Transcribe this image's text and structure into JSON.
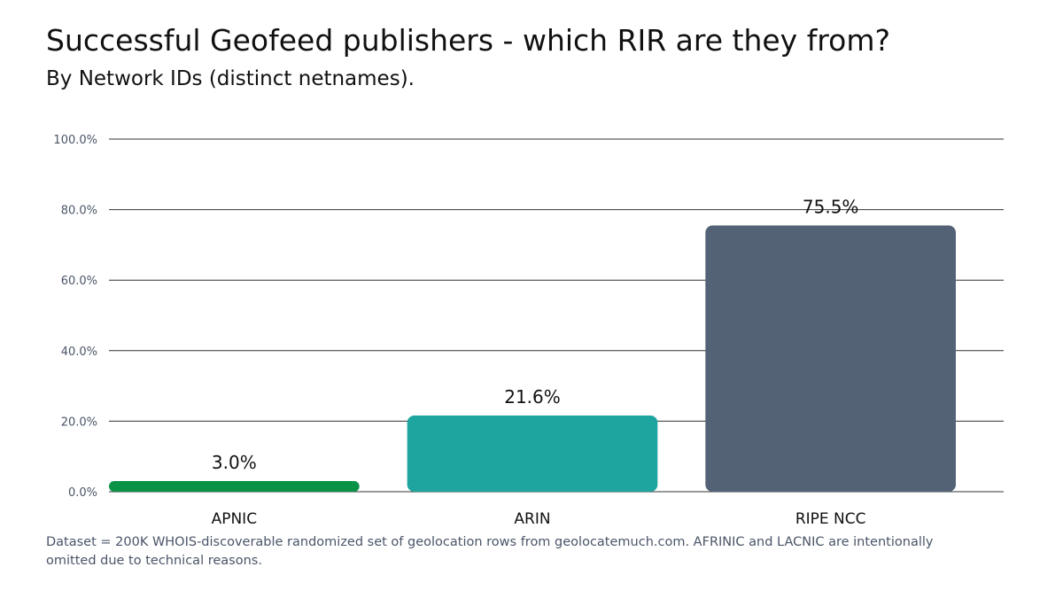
{
  "title": "Successful Geofeed publishers - which RIR are they from?",
  "subtitle": "By Network IDs (distinct netnames).",
  "footnote": "Dataset = 200K WHOIS-discoverable randomized set of geolocation rows from geolocatemuch.com. AFRINIC and LACNIC are intentionally omitted due to technical reasons.",
  "chart_data": {
    "type": "bar",
    "categories": [
      "APNIC",
      "ARIN",
      "RIPE NCC"
    ],
    "values": [
      3.0,
      21.6,
      75.5
    ],
    "value_labels": [
      "3.0%",
      "21.6%",
      "75.5%"
    ],
    "colors": [
      "#0a9246",
      "#1fa59f",
      "#536274"
    ],
    "ylim": [
      0,
      100
    ],
    "yticks": [
      0,
      20,
      40,
      60,
      80,
      100
    ],
    "ytick_labels": [
      "0.0%",
      "20.0%",
      "40.0%",
      "60.0%",
      "80.0%",
      "100.0%"
    ],
    "grid": true,
    "legend": "none"
  }
}
